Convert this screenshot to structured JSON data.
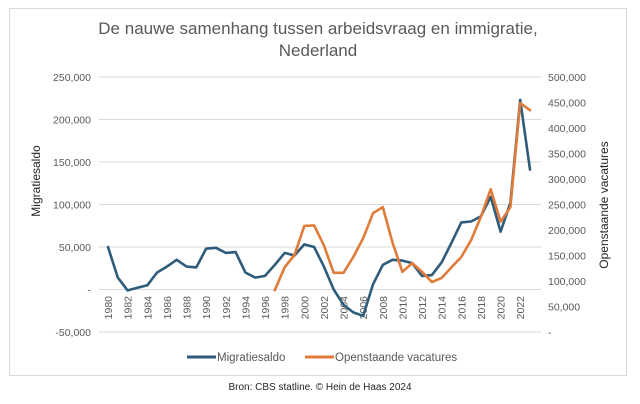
{
  "chart_data": {
    "type": "line",
    "title": [
      "De nauwe samenhang tussen arbeidsvraag en immigratie,",
      "Nederland"
    ],
    "x": [
      1980,
      1981,
      1982,
      1983,
      1984,
      1985,
      1986,
      1987,
      1988,
      1989,
      1990,
      1991,
      1992,
      1993,
      1994,
      1995,
      1996,
      1997,
      1998,
      1999,
      2000,
      2001,
      2002,
      2003,
      2004,
      2005,
      2006,
      2007,
      2008,
      2009,
      2010,
      2011,
      2012,
      2013,
      2014,
      2015,
      2016,
      2017,
      2018,
      2019,
      2020,
      2021,
      2022,
      2023
    ],
    "x_tick_labels": [
      "1980",
      "1982",
      "1984",
      "1986",
      "1988",
      "1990",
      "1992",
      "1994",
      "1996",
      "1998",
      "2000",
      "2002",
      "2004",
      "2006",
      "2008",
      "2010",
      "2012",
      "2014",
      "2016",
      "2018",
      "2020",
      "2022"
    ],
    "xlim": [
      1980,
      2023
    ],
    "ylabel": "Migratiesaldo",
    "ylim": [
      -50000,
      250000
    ],
    "y_tick_labels": [
      "-50,000",
      "-",
      "50,000",
      "100,000",
      "150,000",
      "200,000",
      "250,000"
    ],
    "y_ticks": [
      -50000,
      0,
      50000,
      100000,
      150000,
      200000,
      250000
    ],
    "y2label": "Openstaande vacatures",
    "y2lim": [
      0,
      500000
    ],
    "y2_tick_labels": [
      "-",
      "50,000",
      "100,000",
      "150,000",
      "200,000",
      "250,000",
      "300,000",
      "350,000",
      "400,000",
      "450,000",
      "500,000"
    ],
    "y2_ticks": [
      0,
      50000,
      100000,
      150000,
      200000,
      250000,
      300000,
      350000,
      400000,
      450000,
      500000
    ],
    "grid": true,
    "legend_position": "bottom",
    "series": [
      {
        "name": "Migratiesaldo",
        "axis": "left",
        "color": "#2e5c7a",
        "values": [
          50000,
          14000,
          -1000,
          2000,
          5000,
          20000,
          27000,
          35000,
          27000,
          26000,
          48000,
          49000,
          43000,
          44000,
          20000,
          14000,
          16000,
          29000,
          43000,
          40000,
          53000,
          50000,
          27000,
          0,
          -18000,
          -27000,
          -31000,
          6000,
          29000,
          35000,
          34000,
          31000,
          16000,
          17000,
          32000,
          55000,
          79000,
          80000,
          86000,
          109000,
          68000,
          102000,
          223000,
          141000
        ]
      },
      {
        "name": "Openstaande vacatures",
        "axis": "right",
        "color": "#e07b39",
        "values": [
          null,
          null,
          null,
          null,
          null,
          null,
          null,
          null,
          null,
          null,
          null,
          null,
          null,
          null,
          null,
          null,
          null,
          82000,
          127000,
          151000,
          208000,
          209000,
          170000,
          116000,
          116000,
          147000,
          184000,
          233000,
          245000,
          175000,
          118000,
          135000,
          118000,
          98000,
          106000,
          127000,
          147000,
          180000,
          226000,
          280000,
          216000,
          245000,
          449000,
          435000
        ]
      }
    ]
  },
  "source_text": "Bron: CBS statline. © Hein de Haas 2024"
}
